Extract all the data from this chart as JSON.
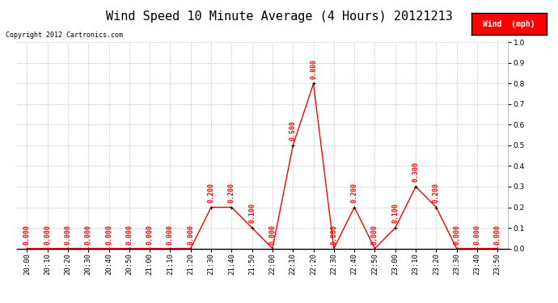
{
  "title": "Wind Speed 10 Minute Average (4 Hours) 20121213",
  "copyright": "Copyright 2012 Cartronics.com",
  "legend_label": "Wind  (mph)",
  "legend_bg": "#ff0000",
  "legend_fg": "#ffffff",
  "x_labels": [
    "20:00",
    "20:10",
    "20:20",
    "20:30",
    "20:40",
    "20:50",
    "21:00",
    "21:10",
    "21:20",
    "21:30",
    "21:40",
    "21:50",
    "22:00",
    "22:10",
    "22:20",
    "22:30",
    "22:40",
    "22:50",
    "23:00",
    "23:10",
    "23:20",
    "23:30",
    "23:40",
    "23:50"
  ],
  "y_values": [
    0.0,
    0.0,
    0.0,
    0.0,
    0.0,
    0.0,
    0.0,
    0.0,
    0.0,
    0.2,
    0.2,
    0.1,
    0.0,
    0.5,
    0.8,
    0.0,
    0.2,
    0.0,
    0.1,
    0.3,
    0.2,
    0.0,
    0.0,
    0.0
  ],
  "line_color": "#ff0000",
  "marker_color": "#000000",
  "label_color": "#ff0000",
  "ylim": [
    0.0,
    1.0
  ],
  "yticks": [
    0.0,
    0.1,
    0.2,
    0.3,
    0.4,
    0.5,
    0.6,
    0.7,
    0.8,
    0.9,
    1.0
  ],
  "bg_color": "#ffffff",
  "grid_color": "#c8c8c8",
  "title_fontsize": 11,
  "label_fontsize": 6,
  "axis_fontsize": 6.5,
  "copyright_fontsize": 6,
  "legend_fontsize": 7
}
